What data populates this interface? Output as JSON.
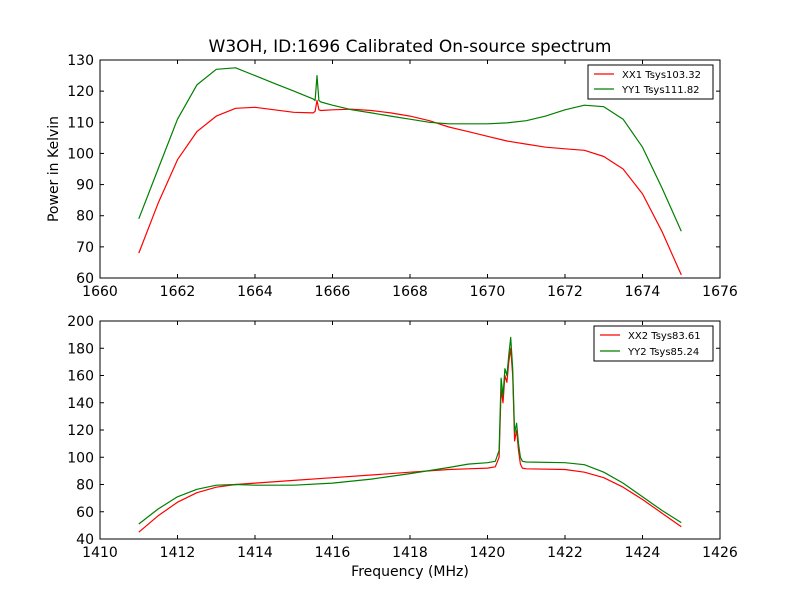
{
  "chart_data": [
    {
      "type": "line",
      "title": "W3OH, ID:1696 Calibrated On-source spectrum",
      "xlabel": "",
      "ylabel": "Power in Kelvin",
      "xlim": [
        1660,
        1676
      ],
      "ylim": [
        60,
        130
      ],
      "xticks": [
        "1660",
        "1662",
        "1664",
        "1666",
        "1668",
        "1670",
        "1672",
        "1674",
        "1676"
      ],
      "yticks": [
        "60",
        "70",
        "80",
        "90",
        "100",
        "110",
        "120",
        "130"
      ],
      "legend_position": "top-right",
      "series": [
        {
          "name": "XX1 Tsys103.32",
          "color": "#ff0000",
          "x": [
            1661.0,
            1661.5,
            1662.0,
            1662.5,
            1663.0,
            1663.5,
            1664.0,
            1664.5,
            1665.0,
            1665.5,
            1665.55,
            1665.6,
            1665.65,
            1665.7,
            1666.0,
            1666.5,
            1667.0,
            1667.5,
            1668.0,
            1668.5,
            1669.0,
            1669.5,
            1670.0,
            1670.5,
            1671.0,
            1671.5,
            1672.0,
            1672.5,
            1673.0,
            1673.5,
            1674.0,
            1674.5,
            1675.0
          ],
          "y": [
            68,
            84,
            98,
            107,
            112,
            114.5,
            114.8,
            114,
            113.2,
            113,
            113.5,
            117,
            114,
            113.8,
            114,
            114.2,
            113.8,
            113,
            112,
            110.5,
            108.5,
            107,
            105.5,
            104,
            103,
            102,
            101.5,
            101,
            99,
            95,
            87,
            75,
            61
          ]
        },
        {
          "name": "YY1 Tsys111.82",
          "color": "#008000",
          "x": [
            1661.0,
            1661.5,
            1662.0,
            1662.5,
            1663.0,
            1663.5,
            1664.0,
            1664.5,
            1665.0,
            1665.5,
            1665.55,
            1665.6,
            1665.65,
            1665.7,
            1666.0,
            1666.5,
            1667.0,
            1667.5,
            1668.0,
            1668.5,
            1669.0,
            1669.5,
            1670.0,
            1670.5,
            1671.0,
            1671.5,
            1672.0,
            1672.5,
            1673.0,
            1673.5,
            1674.0,
            1674.5,
            1675.0
          ],
          "y": [
            79,
            95,
            111,
            122,
            127,
            127.5,
            125,
            122.5,
            120,
            117.5,
            117,
            125,
            117,
            116.5,
            115.5,
            114,
            113,
            112,
            111,
            110,
            109.5,
            109.5,
            109.5,
            109.8,
            110.5,
            112,
            114,
            115.5,
            115,
            111,
            102,
            89,
            75
          ]
        }
      ]
    },
    {
      "type": "line",
      "title": "",
      "xlabel": "Frequency (MHz)",
      "ylabel": "",
      "xlim": [
        1410,
        1426
      ],
      "ylim": [
        40,
        200
      ],
      "xticks": [
        "1410",
        "1412",
        "1414",
        "1416",
        "1418",
        "1420",
        "1422",
        "1424",
        "1426"
      ],
      "yticks": [
        "40",
        "60",
        "80",
        "100",
        "120",
        "140",
        "160",
        "180",
        "200"
      ],
      "legend_position": "top-right",
      "series": [
        {
          "name": "XX2 Tsys83.61",
          "color": "#ff0000",
          "x": [
            1411.0,
            1411.5,
            1412.0,
            1412.5,
            1413.0,
            1413.5,
            1414.0,
            1415.0,
            1416.0,
            1417.0,
            1418.0,
            1419.0,
            1419.5,
            1420.0,
            1420.2,
            1420.3,
            1420.35,
            1420.4,
            1420.45,
            1420.5,
            1420.55,
            1420.6,
            1420.65,
            1420.7,
            1420.75,
            1420.8,
            1420.85,
            1420.9,
            1421.0,
            1422.0,
            1422.5,
            1423.0,
            1423.5,
            1424.0,
            1424.5,
            1425.0
          ],
          "y": [
            45,
            57,
            67,
            74,
            78,
            80,
            81,
            83,
            85,
            87,
            89,
            91,
            91.5,
            92,
            93,
            100,
            150,
            140,
            160,
            155,
            170,
            180,
            160,
            112,
            120,
            105,
            95,
            92,
            91.5,
            91,
            89,
            85,
            78,
            69,
            59,
            49
          ]
        },
        {
          "name": "YY2 Tsys85.24",
          "color": "#008000",
          "x": [
            1411.0,
            1411.5,
            1412.0,
            1412.5,
            1413.0,
            1413.5,
            1414.0,
            1415.0,
            1416.0,
            1417.0,
            1418.0,
            1419.0,
            1419.5,
            1420.0,
            1420.2,
            1420.3,
            1420.35,
            1420.4,
            1420.45,
            1420.5,
            1420.55,
            1420.6,
            1420.65,
            1420.7,
            1420.75,
            1420.8,
            1420.85,
            1420.9,
            1421.0,
            1422.0,
            1422.5,
            1423.0,
            1423.5,
            1424.0,
            1424.5,
            1425.0
          ],
          "y": [
            51,
            62,
            71,
            76.5,
            79.5,
            80,
            79.5,
            79.5,
            81,
            84,
            88,
            92.5,
            95,
            96,
            97,
            105,
            158,
            145,
            165,
            160,
            175,
            188,
            165,
            118,
            125,
            110,
            100,
            97,
            96.5,
            96,
            94.5,
            89,
            81,
            71,
            61,
            52
          ]
        }
      ]
    }
  ]
}
